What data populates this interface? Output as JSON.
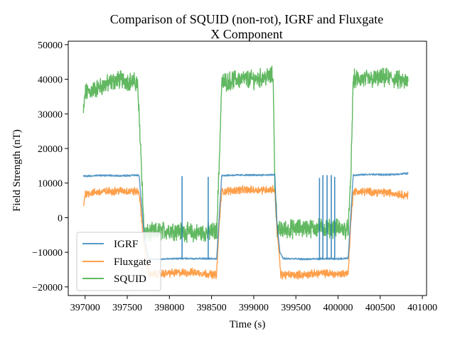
{
  "chart_data": {
    "type": "line",
    "title_line1": "Comparison of SQUID (non-rot), IGRF and Fluxgate",
    "title_line2": "X Component",
    "xlabel": "Time (s)",
    "ylabel": "Field Strength (nT)",
    "xlim": [
      396800,
      401050
    ],
    "ylim": [
      -22500,
      51000
    ],
    "x_ticks": [
      397000,
      397500,
      398000,
      398500,
      399000,
      399500,
      400000,
      400500,
      401000
    ],
    "y_ticks": [
      -20000,
      -10000,
      0,
      10000,
      20000,
      30000,
      40000,
      50000
    ],
    "legend_position": "lower left",
    "series": [
      {
        "name": "IGRF",
        "color": "#1f77b4",
        "x": [
          396980,
          397200,
          397400,
          397640,
          397700,
          397750,
          398000,
          398150,
          398400,
          398560,
          398590,
          398620,
          398800,
          399000,
          399250,
          399270,
          399310,
          399350,
          399600,
          399800,
          400000,
          400120,
          400150,
          400180,
          400400,
          400600,
          400830
        ],
        "y": [
          12000,
          12200,
          12100,
          12300,
          -5000,
          -12000,
          -11900,
          -11800,
          -11800,
          -11900,
          0,
          12200,
          12300,
          12300,
          12400,
          0,
          -10000,
          -11800,
          -12000,
          -11900,
          -11900,
          -11700,
          0,
          12300,
          12500,
          12400,
          12800
        ],
        "spikes": [
          {
            "x": 398150,
            "y_from": -11800,
            "y_to": 12000
          },
          {
            "x": 398460,
            "y_from": -11800,
            "y_to": 11800
          },
          {
            "x": 399780,
            "y_from": -11900,
            "y_to": 11500
          },
          {
            "x": 399820,
            "y_from": -11900,
            "y_to": 12300
          },
          {
            "x": 399870,
            "y_from": -11900,
            "y_to": 12300
          },
          {
            "x": 399920,
            "y_from": -11900,
            "y_to": 12300
          },
          {
            "x": 399960,
            "y_from": -11900,
            "y_to": 11800
          }
        ]
      },
      {
        "name": "Fluxgate",
        "color": "#ff7f0e",
        "x": [
          396980,
          397000,
          397200,
          397400,
          397640,
          397700,
          397760,
          398000,
          398300,
          398560,
          398590,
          398620,
          398800,
          399000,
          399250,
          399280,
          399320,
          399600,
          399800,
          400000,
          400120,
          400150,
          400180,
          400400,
          400600,
          400830
        ],
        "y": [
          3000,
          7000,
          7500,
          7800,
          7500,
          -8000,
          -16500,
          -16000,
          -15800,
          -16500,
          -2000,
          7500,
          8000,
          8000,
          8200,
          -4000,
          -16500,
          -16500,
          -16000,
          -16300,
          -16000,
          -2000,
          7500,
          7500,
          7200,
          6500
        ],
        "noise": 1800
      },
      {
        "name": "SQUID",
        "color": "#2ca02c",
        "x": [
          396980,
          397000,
          397200,
          397400,
          397620,
          397660,
          397700,
          397760,
          398000,
          398300,
          398560,
          398590,
          398620,
          398800,
          399000,
          399230,
          399250,
          399280,
          399320,
          399600,
          399800,
          400000,
          400120,
          400150,
          400180,
          400400,
          400600,
          400830
        ],
        "y": [
          30000,
          36000,
          38000,
          40000,
          39000,
          20000,
          -5000,
          -4500,
          -3500,
          -4500,
          -4000,
          15000,
          39000,
          40000,
          40000,
          41000,
          10000,
          -4000,
          -3500,
          -3000,
          -3000,
          -3000,
          -3500,
          10000,
          40000,
          40000,
          40500,
          39000
        ],
        "noise": 4200
      }
    ]
  }
}
